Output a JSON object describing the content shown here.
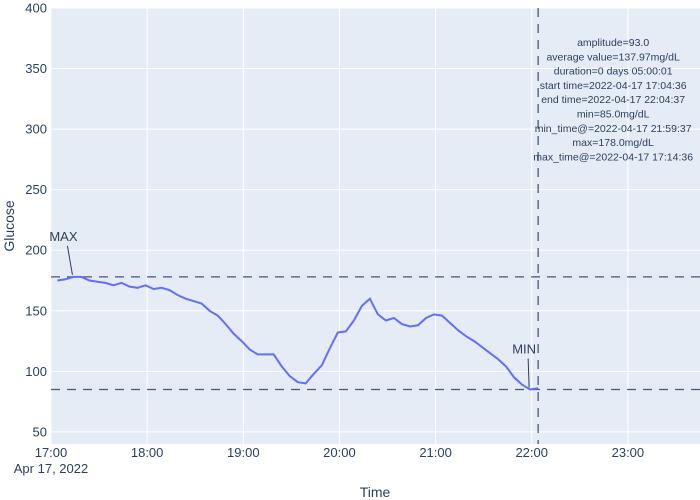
{
  "chart_data": {
    "type": "line",
    "xlabel": "Time",
    "ylabel": "Glucose",
    "x_date_label": "Apr 17, 2022",
    "x_range": [
      "2022-04-17 17:00",
      "2022-04-17 23:45"
    ],
    "ylim": [
      40,
      400
    ],
    "y_ticks": [
      50,
      100,
      150,
      200,
      250,
      300,
      350,
      400
    ],
    "x_ticks": [
      {
        "t": "2022-04-17 17:00",
        "label": "17:00"
      },
      {
        "t": "2022-04-17 18:00",
        "label": "18:00"
      },
      {
        "t": "2022-04-17 19:00",
        "label": "19:00"
      },
      {
        "t": "2022-04-17 20:00",
        "label": "20:00"
      },
      {
        "t": "2022-04-17 21:00",
        "label": "21:00"
      },
      {
        "t": "2022-04-17 22:00",
        "label": "22:00"
      },
      {
        "t": "2022-04-17 23:00",
        "label": "23:00"
      }
    ],
    "grid": true,
    "line_color": "#636efa",
    "series": [
      {
        "x": [
          "2022-04-17 17:04",
          "2022-04-17 17:09",
          "2022-04-17 17:14",
          "2022-04-17 17:19",
          "2022-04-17 17:24",
          "2022-04-17 17:29",
          "2022-04-17 17:34",
          "2022-04-17 17:39",
          "2022-04-17 17:44",
          "2022-04-17 17:49",
          "2022-04-17 17:54",
          "2022-04-17 17:59",
          "2022-04-17 18:04",
          "2022-04-17 18:09",
          "2022-04-17 18:14",
          "2022-04-17 18:19",
          "2022-04-17 18:24",
          "2022-04-17 18:29",
          "2022-04-17 18:34",
          "2022-04-17 18:39",
          "2022-04-17 18:44",
          "2022-04-17 18:49",
          "2022-04-17 18:54",
          "2022-04-17 18:59",
          "2022-04-17 19:04",
          "2022-04-17 19:09",
          "2022-04-17 19:14",
          "2022-04-17 19:19",
          "2022-04-17 19:24",
          "2022-04-17 19:29",
          "2022-04-17 19:34",
          "2022-04-17 19:39",
          "2022-04-17 19:44",
          "2022-04-17 19:49",
          "2022-04-17 19:54",
          "2022-04-17 19:59",
          "2022-04-17 20:04",
          "2022-04-17 20:09",
          "2022-04-17 20:14",
          "2022-04-17 20:19",
          "2022-04-17 20:24",
          "2022-04-17 20:29",
          "2022-04-17 20:34",
          "2022-04-17 20:39",
          "2022-04-17 20:44",
          "2022-04-17 20:49",
          "2022-04-17 20:54",
          "2022-04-17 20:59",
          "2022-04-17 21:04",
          "2022-04-17 21:09",
          "2022-04-17 21:14",
          "2022-04-17 21:19",
          "2022-04-17 21:24",
          "2022-04-17 21:29",
          "2022-04-17 21:34",
          "2022-04-17 21:39",
          "2022-04-17 21:44",
          "2022-04-17 21:49",
          "2022-04-17 21:54",
          "2022-04-17 21:59",
          "2022-04-17 22:04"
        ],
        "y": [
          175,
          176,
          178,
          178,
          175,
          174,
          173,
          171,
          173,
          170,
          169,
          171,
          168,
          169,
          167,
          163,
          160,
          158,
          156,
          150,
          146,
          139,
          131,
          125,
          118,
          114,
          114,
          114,
          104,
          96,
          91,
          90,
          98,
          105,
          119,
          132,
          133,
          142,
          154,
          160,
          147,
          142,
          144,
          139,
          137,
          138,
          144,
          147,
          146,
          140,
          134,
          129,
          125,
          120,
          115,
          110,
          104,
          95,
          89,
          85,
          86
        ]
      }
    ],
    "reference_lines": {
      "horizontal": [
        178.0,
        85.0
      ],
      "vertical": [
        "2022-04-17 22:04"
      ]
    },
    "annotations": [
      {
        "text": "MAX",
        "x": "2022-04-17 17:14",
        "y": 178.0
      },
      {
        "text": "MIN",
        "x": "2022-04-17 21:59",
        "y": 85.0
      }
    ],
    "stats": [
      "amplitude=93.0",
      "average value=137.97mg/dL",
      "duration=0 days 05:00:01",
      "start time=2022-04-17 17:04:36",
      "end time=2022-04-17 22:04:37",
      "min=85.0mg/dL",
      "min_time@=2022-04-17 21:59:37",
      "max=178.0mg/dL",
      "max_time@=2022-04-17 17:14:36"
    ]
  }
}
